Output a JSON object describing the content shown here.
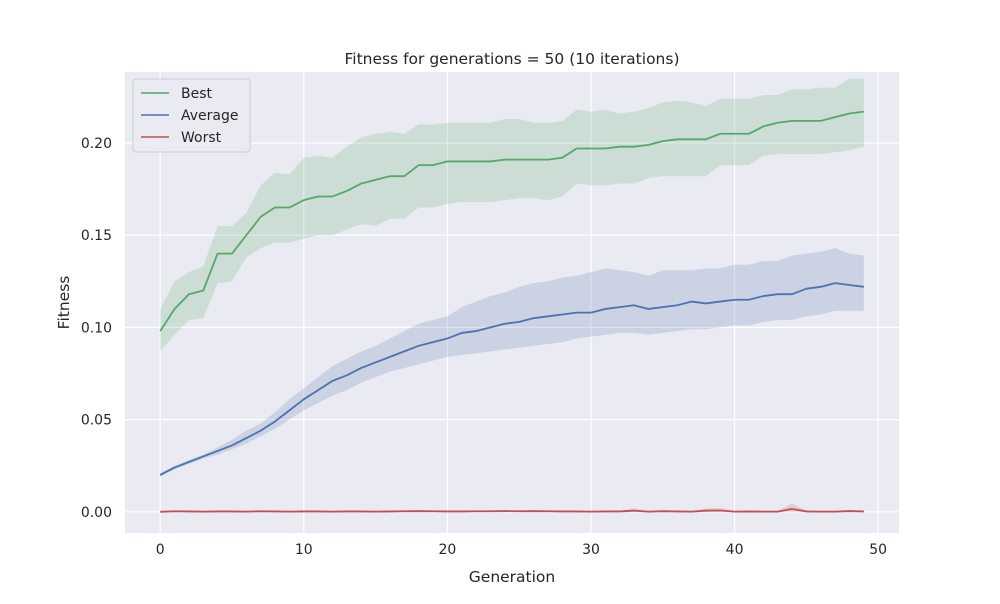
{
  "chart_data": {
    "type": "line",
    "title": "Fitness for generations = 50 (10 iterations)",
    "xlabel": "Generation",
    "ylabel": "Fitness",
    "xlim": [
      -2.45,
      51.45
    ],
    "ylim": [
      -0.0115,
      0.2385
    ],
    "xticks": [
      0,
      10,
      20,
      30,
      40,
      50
    ],
    "yticks": [
      0.0,
      0.05,
      0.1,
      0.15,
      0.2
    ],
    "xtick_labels": [
      "0",
      "10",
      "20",
      "30",
      "40",
      "50"
    ],
    "ytick_labels": [
      "0.00",
      "0.05",
      "0.10",
      "0.15",
      "0.20"
    ],
    "grid": true,
    "legend_position": "top-left",
    "background": "#eaeaf2",
    "x": [
      0,
      1,
      2,
      3,
      4,
      5,
      6,
      7,
      8,
      9,
      10,
      11,
      12,
      13,
      14,
      15,
      16,
      17,
      18,
      19,
      20,
      21,
      22,
      23,
      24,
      25,
      26,
      27,
      28,
      29,
      30,
      31,
      32,
      33,
      34,
      35,
      36,
      37,
      38,
      39,
      40,
      41,
      42,
      43,
      44,
      45,
      46,
      47,
      48,
      49
    ],
    "series": [
      {
        "name": "Best",
        "color": "#55a868",
        "values": [
          0.098,
          0.11,
          0.118,
          0.12,
          0.14,
          0.14,
          0.15,
          0.16,
          0.165,
          0.165,
          0.169,
          0.171,
          0.171,
          0.174,
          0.178,
          0.18,
          0.182,
          0.182,
          0.188,
          0.188,
          0.19,
          0.19,
          0.19,
          0.19,
          0.191,
          0.191,
          0.191,
          0.191,
          0.192,
          0.197,
          0.197,
          0.197,
          0.198,
          0.198,
          0.199,
          0.201,
          0.202,
          0.202,
          0.202,
          0.205,
          0.205,
          0.205,
          0.209,
          0.211,
          0.212,
          0.212,
          0.212,
          0.214,
          0.216,
          0.217
        ],
        "lower": [
          0.087,
          0.096,
          0.104,
          0.105,
          0.124,
          0.125,
          0.138,
          0.143,
          0.146,
          0.146,
          0.148,
          0.15,
          0.15,
          0.153,
          0.156,
          0.155,
          0.159,
          0.159,
          0.165,
          0.165,
          0.167,
          0.168,
          0.168,
          0.168,
          0.169,
          0.17,
          0.17,
          0.169,
          0.171,
          0.178,
          0.177,
          0.177,
          0.178,
          0.178,
          0.181,
          0.182,
          0.182,
          0.182,
          0.182,
          0.188,
          0.188,
          0.188,
          0.193,
          0.194,
          0.194,
          0.194,
          0.194,
          0.195,
          0.196,
          0.198
        ],
        "upper": [
          0.11,
          0.125,
          0.13,
          0.133,
          0.155,
          0.155,
          0.162,
          0.177,
          0.184,
          0.183,
          0.192,
          0.193,
          0.192,
          0.198,
          0.203,
          0.205,
          0.206,
          0.205,
          0.21,
          0.21,
          0.211,
          0.211,
          0.211,
          0.211,
          0.213,
          0.213,
          0.211,
          0.211,
          0.212,
          0.218,
          0.217,
          0.218,
          0.216,
          0.217,
          0.219,
          0.222,
          0.223,
          0.222,
          0.22,
          0.224,
          0.224,
          0.224,
          0.226,
          0.226,
          0.229,
          0.229,
          0.23,
          0.23,
          0.235,
          0.235
        ]
      },
      {
        "name": "Average",
        "color": "#4c72b0",
        "values": [
          0.02,
          0.024,
          0.027,
          0.03,
          0.033,
          0.036,
          0.04,
          0.044,
          0.049,
          0.055,
          0.061,
          0.066,
          0.071,
          0.074,
          0.078,
          0.081,
          0.084,
          0.087,
          0.09,
          0.092,
          0.094,
          0.097,
          0.098,
          0.1,
          0.102,
          0.103,
          0.105,
          0.106,
          0.107,
          0.108,
          0.108,
          0.11,
          0.111,
          0.112,
          0.11,
          0.111,
          0.112,
          0.114,
          0.113,
          0.114,
          0.115,
          0.115,
          0.117,
          0.118,
          0.118,
          0.121,
          0.122,
          0.124,
          0.123,
          0.122
        ],
        "lower": [
          0.019,
          0.023,
          0.026,
          0.029,
          0.031,
          0.034,
          0.037,
          0.041,
          0.045,
          0.05,
          0.055,
          0.059,
          0.063,
          0.066,
          0.07,
          0.073,
          0.076,
          0.078,
          0.08,
          0.082,
          0.084,
          0.085,
          0.086,
          0.087,
          0.088,
          0.089,
          0.09,
          0.091,
          0.092,
          0.094,
          0.095,
          0.096,
          0.097,
          0.097,
          0.096,
          0.097,
          0.098,
          0.099,
          0.099,
          0.1,
          0.101,
          0.101,
          0.103,
          0.104,
          0.104,
          0.106,
          0.107,
          0.109,
          0.109,
          0.109
        ],
        "upper": [
          0.021,
          0.025,
          0.028,
          0.031,
          0.035,
          0.039,
          0.044,
          0.048,
          0.054,
          0.061,
          0.067,
          0.073,
          0.079,
          0.083,
          0.087,
          0.09,
          0.094,
          0.098,
          0.102,
          0.104,
          0.106,
          0.111,
          0.114,
          0.117,
          0.119,
          0.122,
          0.124,
          0.125,
          0.127,
          0.128,
          0.13,
          0.132,
          0.131,
          0.13,
          0.128,
          0.131,
          0.131,
          0.131,
          0.132,
          0.132,
          0.134,
          0.134,
          0.136,
          0.136,
          0.139,
          0.14,
          0.141,
          0.143,
          0.14,
          0.139
        ]
      },
      {
        "name": "Worst",
        "color": "#c44e52",
        "values": [
          0.0,
          0.0003,
          0.0002,
          0.0001,
          0.0002,
          0.0002,
          0.0001,
          0.0003,
          0.0002,
          0.0001,
          0.0002,
          0.0002,
          0.0001,
          0.0002,
          0.0002,
          0.0001,
          0.0002,
          0.0003,
          0.0004,
          0.0003,
          0.0002,
          0.0002,
          0.0003,
          0.0003,
          0.0004,
          0.0003,
          0.0004,
          0.0003,
          0.0002,
          0.0002,
          0.0001,
          0.0002,
          0.0002,
          0.0006,
          0.0001,
          0.0003,
          0.0002,
          0.0001,
          0.0006,
          0.0007,
          0.0001,
          0.0002,
          0.0001,
          0.0001,
          0.0015,
          0.0002,
          0.0001,
          0.0001,
          0.0004,
          0.0002
        ],
        "lower": [
          0.0,
          0.0,
          0.0,
          0.0,
          0.0,
          0.0,
          0.0,
          0.0,
          0.0,
          0.0,
          0.0,
          0.0,
          0.0,
          0.0,
          0.0,
          0.0,
          0.0,
          0.0,
          0.0,
          0.0,
          0.0,
          0.0,
          0.0,
          0.0,
          0.0,
          0.0,
          0.0,
          0.0,
          0.0,
          0.0,
          0.0,
          0.0,
          0.0,
          0.0,
          0.0,
          0.0,
          0.0,
          0.0,
          0.0,
          0.0,
          0.0,
          0.0,
          0.0,
          0.0,
          0.0,
          0.0,
          0.0,
          0.0,
          0.0,
          0.0
        ],
        "upper": [
          0.0005,
          0.0006,
          0.0005,
          0.0004,
          0.0005,
          0.0005,
          0.0004,
          0.0006,
          0.0005,
          0.0004,
          0.0005,
          0.0005,
          0.0004,
          0.0005,
          0.0005,
          0.0004,
          0.0005,
          0.0006,
          0.0007,
          0.0006,
          0.0005,
          0.0005,
          0.0006,
          0.0006,
          0.0007,
          0.0006,
          0.0007,
          0.0006,
          0.0005,
          0.0005,
          0.0004,
          0.0005,
          0.0005,
          0.002,
          0.0004,
          0.0012,
          0.0005,
          0.0004,
          0.0018,
          0.002,
          0.0004,
          0.0005,
          0.0004,
          0.0004,
          0.0045,
          0.0005,
          0.0004,
          0.0004,
          0.0008,
          0.0005
        ]
      }
    ]
  }
}
